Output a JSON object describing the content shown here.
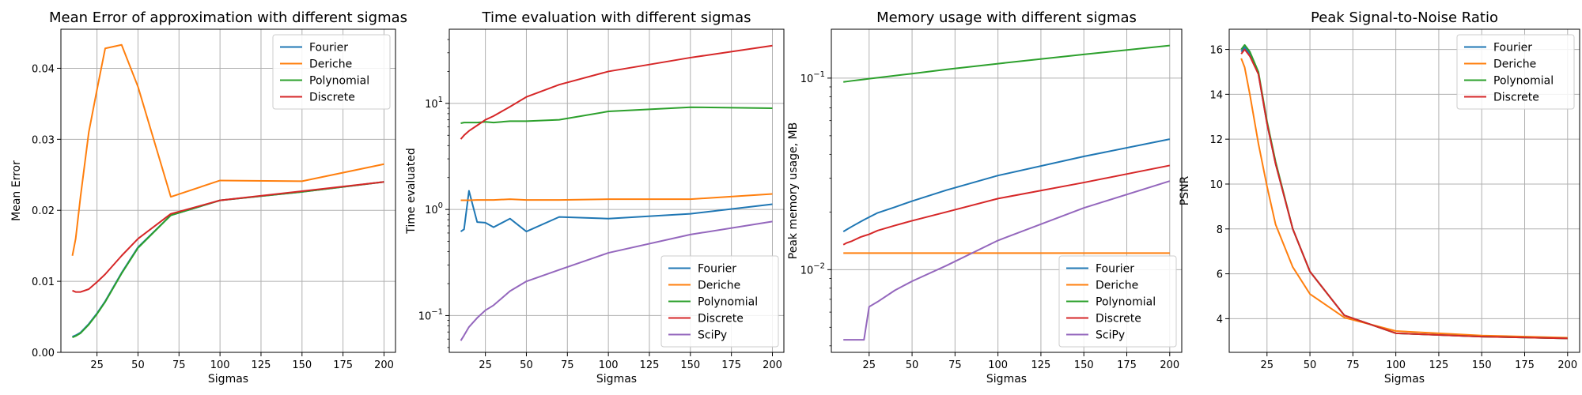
{
  "chart_data": [
    {
      "type": "line",
      "title": "Mean Error of approximation with different sigmas",
      "xlabel": "Sigmas",
      "ylabel": "Mean Error",
      "xlim": [
        3,
        207
      ],
      "ylim": [
        0,
        0.0455
      ],
      "yscale": "linear",
      "xticks": [
        25,
        50,
        75,
        100,
        125,
        150,
        175,
        200
      ],
      "yticks": [
        0.0,
        0.01,
        0.02,
        0.03,
        0.04
      ],
      "ytick_labels": [
        "0.00",
        "0.01",
        "0.02",
        "0.03",
        "0.04"
      ],
      "grid": true,
      "legend": "upper-right",
      "x": [
        10,
        12,
        15,
        20,
        25,
        30,
        40,
        50,
        70,
        100,
        150,
        200
      ],
      "series": [
        {
          "name": "Fourier",
          "color": "#1f77b4",
          "values": [
            0.0022,
            0.0024,
            0.0028,
            0.004,
            0.0055,
            0.0072,
            0.0112,
            0.0148,
            0.0193,
            0.0214,
            0.0226,
            0.024
          ]
        },
        {
          "name": "Deriche",
          "color": "#ff7f0e",
          "values": [
            0.0136,
            0.016,
            0.022,
            0.031,
            0.037,
            0.0428,
            0.0433,
            0.0374,
            0.0219,
            0.0242,
            0.0241,
            0.0265
          ]
        },
        {
          "name": "Polynomial",
          "color": "#2ca02c",
          "values": [
            0.0021,
            0.0023,
            0.0027,
            0.0039,
            0.0054,
            0.0071,
            0.0111,
            0.0147,
            0.0193,
            0.0214,
            0.0226,
            0.024
          ]
        },
        {
          "name": "Discrete",
          "color": "#d62728",
          "values": [
            0.0087,
            0.0085,
            0.0085,
            0.0089,
            0.0099,
            0.011,
            0.0136,
            0.016,
            0.0195,
            0.0214,
            0.0227,
            0.024
          ]
        }
      ]
    },
    {
      "type": "line",
      "title": "Time evaluation with different sigmas",
      "xlabel": "Sigmas",
      "ylabel": "Time evaluated",
      "xlim": [
        3,
        207
      ],
      "ylim": [
        0.045,
        50
      ],
      "yscale": "log",
      "xticks": [
        25,
        50,
        75,
        100,
        125,
        150,
        175,
        200
      ],
      "yticks": [
        0.1,
        1,
        10
      ],
      "ytick_labels": [
        "10^-1",
        "10^0",
        "10^1"
      ],
      "grid": true,
      "legend": "lower-right",
      "x": [
        10,
        12,
        15,
        20,
        25,
        30,
        40,
        50,
        70,
        100,
        150,
        200
      ],
      "series": [
        {
          "name": "Fourier",
          "color": "#1f77b4",
          "values": [
            0.62,
            0.65,
            1.5,
            0.76,
            0.75,
            0.68,
            0.82,
            0.62,
            0.85,
            0.82,
            0.91,
            1.12
          ]
        },
        {
          "name": "Deriche",
          "color": "#ff7f0e",
          "values": [
            1.22,
            1.22,
            1.22,
            1.23,
            1.23,
            1.23,
            1.25,
            1.23,
            1.23,
            1.25,
            1.25,
            1.4
          ]
        },
        {
          "name": "Polynomial",
          "color": "#2ca02c",
          "values": [
            6.5,
            6.6,
            6.6,
            6.6,
            6.7,
            6.6,
            6.8,
            6.8,
            7.0,
            8.4,
            9.2,
            9.0
          ]
        },
        {
          "name": "Discrete",
          "color": "#d62728",
          "values": [
            4.6,
            5.0,
            5.5,
            6.2,
            7.0,
            7.6,
            9.3,
            11.5,
            15.0,
            20.0,
            27.0,
            35.0
          ]
        },
        {
          "name": "SciPy",
          "color": "#9467bd",
          "values": [
            0.058,
            0.065,
            0.078,
            0.095,
            0.112,
            0.125,
            0.17,
            0.21,
            0.27,
            0.39,
            0.58,
            0.77
          ]
        }
      ]
    },
    {
      "type": "line",
      "title": "Memory usage with different sigmas",
      "xlabel": "Sigmas",
      "ylabel": "Peak memory usage, MB",
      "xlim": [
        3,
        207
      ],
      "ylim": [
        0.0037,
        0.18
      ],
      "yscale": "log",
      "xticks": [
        25,
        50,
        75,
        100,
        125,
        150,
        175,
        200
      ],
      "yticks": [
        0.01,
        0.1
      ],
      "ytick_labels": [
        "10^-2",
        "10^-1"
      ],
      "grid": true,
      "legend": "lower-right",
      "x": [
        10,
        12,
        15,
        20,
        22,
        25,
        30,
        40,
        50,
        70,
        100,
        150,
        200
      ],
      "series": [
        {
          "name": "Fourier",
          "color": "#1f77b4",
          "values": [
            0.0158,
            0.0162,
            0.0168,
            0.0178,
            0.0182,
            0.0188,
            0.0198,
            0.0212,
            0.0228,
            0.026,
            0.031,
            0.039,
            0.048
          ]
        },
        {
          "name": "Deriche",
          "color": "#ff7f0e",
          "values": [
            0.0122,
            0.0122,
            0.0122,
            0.0122,
            0.0122,
            0.0122,
            0.0122,
            0.0122,
            0.0122,
            0.0122,
            0.0122,
            0.0122,
            0.0122
          ]
        },
        {
          "name": "Polynomial",
          "color": "#2ca02c",
          "values": [
            0.0955,
            0.096,
            0.0968,
            0.098,
            0.0985,
            0.0993,
            0.1005,
            0.103,
            0.1055,
            0.111,
            0.119,
            0.133,
            0.148
          ]
        },
        {
          "name": "Discrete",
          "color": "#d62728",
          "values": [
            0.0135,
            0.0138,
            0.0141,
            0.0148,
            0.015,
            0.0153,
            0.016,
            0.017,
            0.018,
            0.02,
            0.0235,
            0.0285,
            0.035
          ]
        },
        {
          "name": "SciPy",
          "color": "#9467bd",
          "values": [
            0.0043,
            0.0043,
            0.0043,
            0.0043,
            0.0043,
            0.0064,
            0.0068,
            0.0078,
            0.0087,
            0.0105,
            0.0142,
            0.021,
            0.029
          ]
        }
      ]
    },
    {
      "type": "line",
      "title": "Peak Signal-to-Noise Ratio",
      "xlabel": "Sigmas",
      "ylabel": "PSNR",
      "xlim": [
        3,
        207
      ],
      "ylim": [
        2.5,
        16.9
      ],
      "yscale": "linear",
      "xticks": [
        25,
        50,
        75,
        100,
        125,
        150,
        175,
        200
      ],
      "yticks": [
        4,
        6,
        8,
        10,
        12,
        14,
        16
      ],
      "ytick_labels": [
        "4",
        "6",
        "8",
        "10",
        "12",
        "14",
        "16"
      ],
      "grid": true,
      "legend": "upper-right",
      "x": [
        10,
        12,
        15,
        20,
        25,
        30,
        40,
        50,
        70,
        100,
        150,
        200
      ],
      "series": [
        {
          "name": "Fourier",
          "color": "#1f77b4",
          "values": [
            15.9,
            16.1,
            15.8,
            14.9,
            12.7,
            10.9,
            8.0,
            6.1,
            4.15,
            3.35,
            3.2,
            3.12
          ]
        },
        {
          "name": "Deriche",
          "color": "#ff7f0e",
          "values": [
            15.6,
            15.2,
            14.0,
            11.8,
            9.9,
            8.2,
            6.3,
            5.1,
            4.05,
            3.45,
            3.25,
            3.15
          ]
        },
        {
          "name": "Polynomial",
          "color": "#2ca02c",
          "values": [
            16.0,
            16.2,
            15.9,
            15.0,
            12.8,
            11.0,
            8.0,
            6.1,
            4.15,
            3.35,
            3.2,
            3.12
          ]
        },
        {
          "name": "Discrete",
          "color": "#d62728",
          "values": [
            15.8,
            16.0,
            15.7,
            14.9,
            12.7,
            10.9,
            8.0,
            6.1,
            4.15,
            3.35,
            3.2,
            3.12
          ]
        }
      ]
    }
  ]
}
